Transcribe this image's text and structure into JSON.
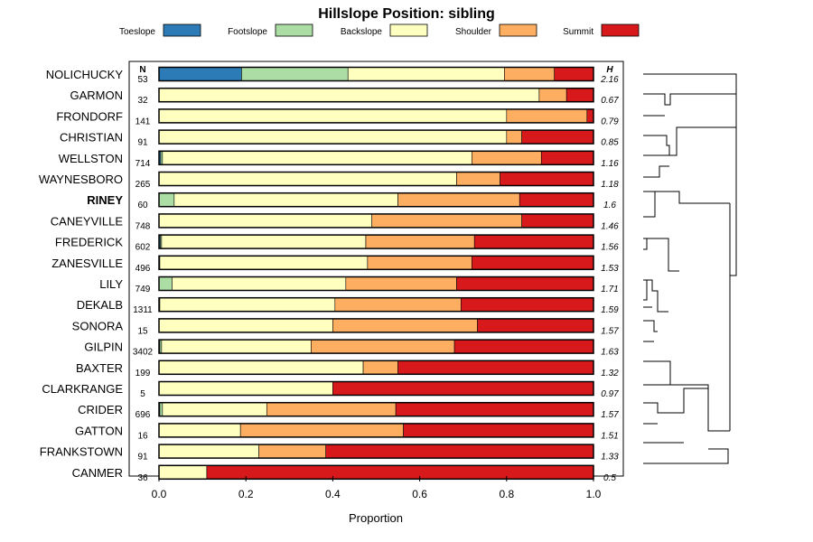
{
  "chart_data": {
    "type": "bar",
    "orientation": "horizontal",
    "stacked": true,
    "title": "Hillslope Position: sibling",
    "xlabel": "Proportion",
    "ylabel": "",
    "xlim": [
      0,
      1
    ],
    "x_ticks": [
      "0.0",
      "0.2",
      "0.4",
      "0.6",
      "0.8",
      "1.0"
    ],
    "n_header": "N",
    "h_header": "H",
    "legend_position": "top",
    "classes": [
      {
        "name": "Toeslope",
        "color": "#2c7bb6"
      },
      {
        "name": "Footslope",
        "color": "#abdda4"
      },
      {
        "name": "Backslope",
        "color": "#ffffbf"
      },
      {
        "name": "Shoulder",
        "color": "#fdae61"
      },
      {
        "name": "Summit",
        "color": "#d7191c"
      }
    ],
    "rows": [
      {
        "name": "NOLICHUCKY",
        "n": "53",
        "h": "2.16",
        "bold": false,
        "values": [
          0.19,
          0.245,
          0.36,
          0.115,
          0.09
        ]
      },
      {
        "name": "GARMON",
        "n": "32",
        "h": "0.67",
        "bold": false,
        "values": [
          0,
          0,
          0.875,
          0.063,
          0.062
        ]
      },
      {
        "name": "FRONDORF",
        "n": "141",
        "h": "0.79",
        "bold": false,
        "values": [
          0,
          0,
          0.8,
          0.185,
          0.015
        ]
      },
      {
        "name": "CHRISTIAN",
        "n": "91",
        "h": "0.85",
        "bold": false,
        "values": [
          0,
          0,
          0.8,
          0.035,
          0.165
        ]
      },
      {
        "name": "WELLSTON",
        "n": "714",
        "h": "1.16",
        "bold": false,
        "values": [
          0.004,
          0.004,
          0.712,
          0.16,
          0.12
        ]
      },
      {
        "name": "WAYNESBORO",
        "n": "265",
        "h": "1.18",
        "bold": false,
        "values": [
          0,
          0,
          0.685,
          0.1,
          0.215
        ]
      },
      {
        "name": "RINEY",
        "n": "60",
        "h": "1.6",
        "bold": true,
        "values": [
          0,
          0.035,
          0.515,
          0.28,
          0.17
        ]
      },
      {
        "name": "CANEYVILLE",
        "n": "748",
        "h": "1.46",
        "bold": false,
        "values": [
          0,
          0,
          0.49,
          0.345,
          0.165
        ]
      },
      {
        "name": "FREDERICK",
        "n": "602",
        "h": "1.56",
        "bold": false,
        "values": [
          0.003,
          0.003,
          0.47,
          0.25,
          0.274
        ]
      },
      {
        "name": "ZANESVILLE",
        "n": "496",
        "h": "1.53",
        "bold": false,
        "values": [
          0,
          0.002,
          0.478,
          0.24,
          0.28
        ]
      },
      {
        "name": "LILY",
        "n": "749",
        "h": "1.71",
        "bold": false,
        "values": [
          0,
          0.03,
          0.4,
          0.255,
          0.315
        ]
      },
      {
        "name": "DEKALB",
        "n": "1311",
        "h": "1.59",
        "bold": false,
        "values": [
          0,
          0.002,
          0.403,
          0.29,
          0.305
        ]
      },
      {
        "name": "SONORA",
        "n": "15",
        "h": "1.57",
        "bold": false,
        "values": [
          0,
          0,
          0.4,
          0.333,
          0.267
        ]
      },
      {
        "name": "GILPIN",
        "n": "3402",
        "h": "1.63",
        "bold": false,
        "values": [
          0.002,
          0.004,
          0.344,
          0.33,
          0.32
        ]
      },
      {
        "name": "BAXTER",
        "n": "199",
        "h": "1.32",
        "bold": false,
        "values": [
          0,
          0,
          0.47,
          0.08,
          0.45
        ]
      },
      {
        "name": "CLARKRANGE",
        "n": "5",
        "h": "0.97",
        "bold": false,
        "values": [
          0,
          0,
          0.4,
          0,
          0.6
        ]
      },
      {
        "name": "CRIDER",
        "n": "696",
        "h": "1.57",
        "bold": false,
        "values": [
          0.002,
          0.006,
          0.24,
          0.297,
          0.455
        ]
      },
      {
        "name": "GATTON",
        "n": "16",
        "h": "1.51",
        "bold": false,
        "values": [
          0,
          0,
          0.1875,
          0.375,
          0.4375
        ]
      },
      {
        "name": "FRANKSTOWN",
        "n": "91",
        "h": "1.33",
        "bold": false,
        "values": [
          0,
          0,
          0.23,
          0.154,
          0.616
        ]
      },
      {
        "name": "CANMER",
        "n": "36",
        "h": "0.5",
        "bold": false,
        "values": [
          0,
          0,
          0.11,
          0,
          0.89
        ]
      }
    ]
  }
}
